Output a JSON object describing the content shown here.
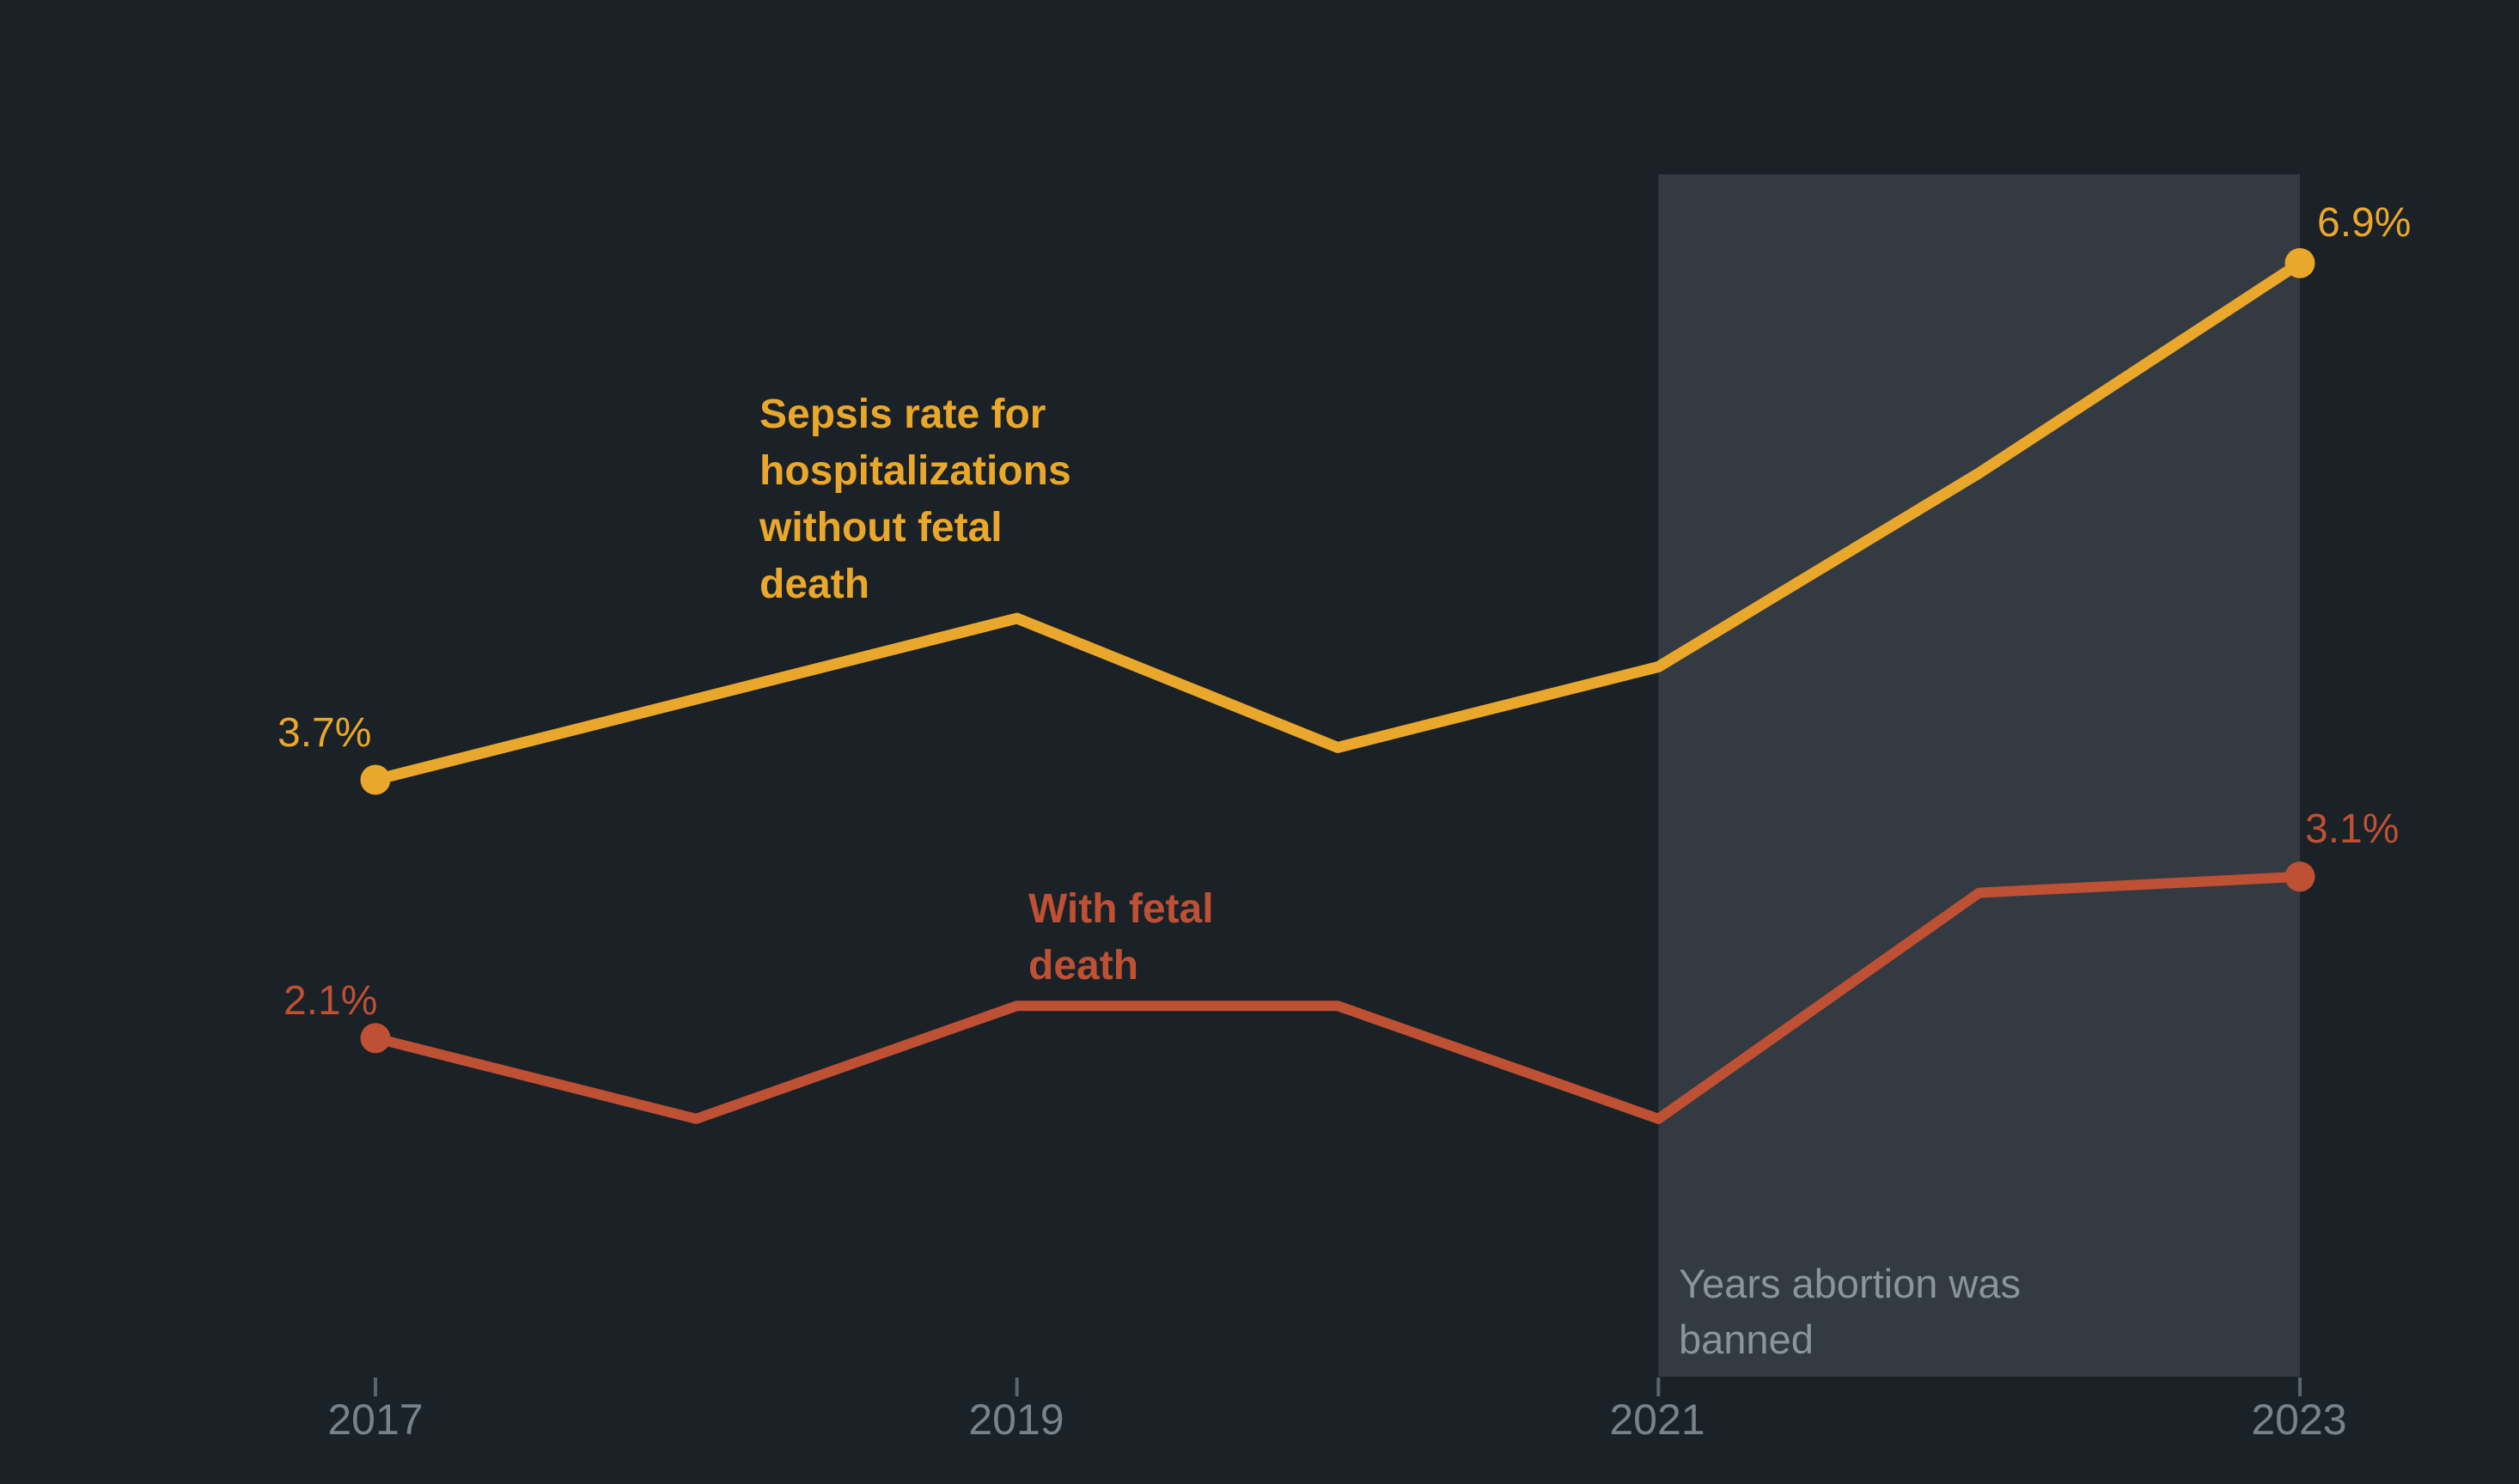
{
  "colors": {
    "background": "#1A2127",
    "band": "#333A41",
    "axis_label": "#79828A",
    "tick": "#5A646B",
    "band_label": "#8B949B"
  },
  "chart_data": {
    "type": "line",
    "x": [
      2017,
      2018,
      2019,
      2020,
      2021,
      2022,
      2023
    ],
    "x_tick_labels": [
      "2017",
      "2019",
      "2021",
      "2023"
    ],
    "x_tick_positions": [
      2017,
      2019,
      2021,
      2023
    ],
    "ylim": [
      0,
      7.5
    ],
    "y_unit": "percent",
    "grid": false,
    "legend_position": "inline-labels",
    "series": [
      {
        "id": "without-fetal-death",
        "label": "Sepsis rate for\nhospitalizations\nwithout fetal\ndeath",
        "color": "#E9A72B",
        "values": [
          3.7,
          4.2,
          4.7,
          3.9,
          4.4,
          5.6,
          6.9
        ],
        "start_label": "3.7%",
        "end_label": "6.9%"
      },
      {
        "id": "with-fetal-death",
        "label": "With fetal\ndeath",
        "color": "#BE5033",
        "values": [
          2.1,
          1.6,
          2.3,
          2.3,
          1.6,
          3.0,
          3.1
        ],
        "start_label": "2.1%",
        "end_label": "3.1%"
      }
    ],
    "annotation": {
      "label": "Years abortion was\nbanned",
      "x_start": 2021,
      "x_end": 2023
    }
  }
}
